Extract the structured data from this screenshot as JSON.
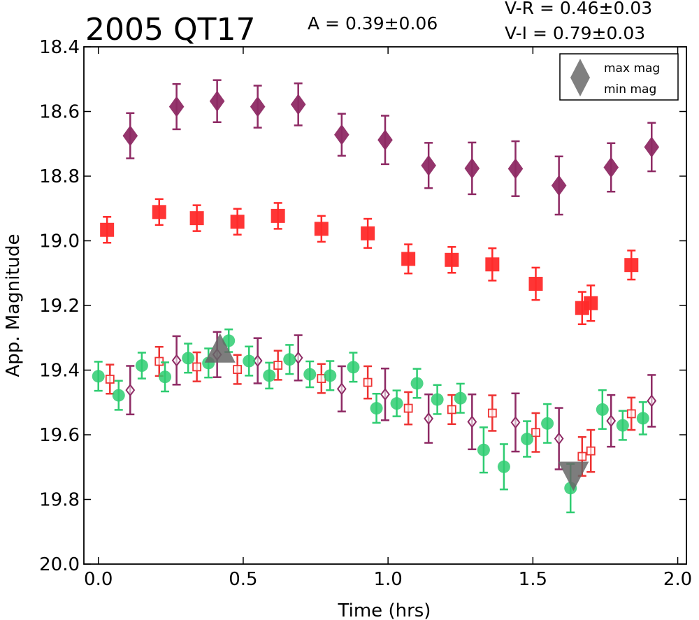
{
  "chart_data": {
    "type": "scatter",
    "title": "2005 QT17",
    "annotations": {
      "amplitude": "A  = 0.39±0.06",
      "v_minus_r": "V-R = 0.46±0.03",
      "v_minus_i": "V-I  = 0.79±0.03"
    },
    "xlabel": "Time (hrs)",
    "ylabel": "App. Magnitude",
    "xlim": [
      -0.05,
      2.03
    ],
    "ylim": [
      20.0,
      18.4
    ],
    "y_inverted": true,
    "grid": false,
    "xticks": [
      "0.0",
      "0.5",
      "1.0",
      "1.5",
      "2.0"
    ],
    "xtick_values": [
      0.0,
      0.5,
      1.0,
      1.5,
      2.0
    ],
    "yticks": [
      "18.4",
      "18.6",
      "18.8",
      "19.0",
      "19.2",
      "19.4",
      "19.6",
      "19.8",
      "20.0"
    ],
    "ytick_values": [
      18.4,
      18.6,
      18.8,
      19.0,
      19.2,
      19.4,
      19.6,
      19.8,
      20.0
    ],
    "legend": {
      "position": "top-right",
      "entries": [
        "max mag",
        "min mag"
      ]
    },
    "series": [
      {
        "marker": "diamond-filled",
        "color": "#8e2a64",
        "x": [
          0.11,
          0.27,
          0.41,
          0.55,
          0.69,
          0.84,
          0.99,
          1.14,
          1.29,
          1.44,
          1.59,
          1.77,
          1.91
        ],
        "y": [
          18.675,
          18.585,
          18.568,
          18.585,
          18.578,
          18.672,
          18.688,
          18.767,
          18.776,
          18.777,
          18.829,
          18.773,
          18.71
        ],
        "err": [
          0.07,
          0.07,
          0.065,
          0.065,
          0.065,
          0.065,
          0.075,
          0.07,
          0.08,
          0.085,
          0.09,
          0.075,
          0.075
        ]
      },
      {
        "marker": "square-filled",
        "color": "#ff2a2a",
        "x": [
          0.03,
          0.21,
          0.34,
          0.48,
          0.62,
          0.77,
          0.93,
          1.07,
          1.22,
          1.36,
          1.51,
          1.67,
          1.7,
          1.84
        ],
        "y": [
          18.966,
          18.911,
          18.93,
          18.941,
          18.923,
          18.963,
          18.977,
          19.056,
          19.059,
          19.073,
          19.133,
          19.208,
          19.193,
          19.075
        ],
        "err": [
          0.04,
          0.04,
          0.04,
          0.04,
          0.04,
          0.04,
          0.045,
          0.045,
          0.04,
          0.05,
          0.05,
          0.05,
          0.055,
          0.045
        ]
      },
      {
        "marker": "circle-filled",
        "color": "#2ecc71",
        "x": [
          0.0,
          0.07,
          0.15,
          0.23,
          0.31,
          0.38,
          0.45,
          0.52,
          0.59,
          0.66,
          0.73,
          0.8,
          0.88,
          0.96,
          1.03,
          1.1,
          1.17,
          1.25,
          1.33,
          1.4,
          1.48,
          1.55,
          1.63,
          1.74,
          1.81,
          1.88
        ],
        "y": [
          19.419,
          19.478,
          19.386,
          19.421,
          19.363,
          19.378,
          19.309,
          19.372,
          19.417,
          19.367,
          19.413,
          19.417,
          19.391,
          19.518,
          19.503,
          19.441,
          19.491,
          19.487,
          19.647,
          19.699,
          19.613,
          19.565,
          19.765,
          19.522,
          19.571,
          19.549
        ],
        "err": [
          0.045,
          0.045,
          0.04,
          0.045,
          0.045,
          0.045,
          0.035,
          0.045,
          0.04,
          0.045,
          0.04,
          0.045,
          0.045,
          0.045,
          0.04,
          0.045,
          0.045,
          0.045,
          0.07,
          0.07,
          0.055,
          0.06,
          0.075,
          0.06,
          0.045,
          0.05
        ]
      },
      {
        "marker": "square-open",
        "color": "#ee3333",
        "x": [
          0.04,
          0.21,
          0.34,
          0.48,
          0.62,
          0.77,
          0.93,
          1.07,
          1.22,
          1.36,
          1.51,
          1.67,
          1.7,
          1.84
        ],
        "y": [
          19.428,
          19.373,
          19.39,
          19.398,
          19.385,
          19.426,
          19.438,
          19.518,
          19.522,
          19.533,
          19.593,
          19.667,
          19.65,
          19.535
        ],
        "err": [
          0.045,
          0.045,
          0.045,
          0.045,
          0.045,
          0.045,
          0.05,
          0.05,
          0.045,
          0.055,
          0.06,
          0.06,
          0.065,
          0.05
        ]
      },
      {
        "marker": "diamond-open",
        "color": "#8e2a64",
        "x": [
          0.11,
          0.27,
          0.41,
          0.55,
          0.69,
          0.84,
          0.99,
          1.14,
          1.29,
          1.44,
          1.59,
          1.77,
          1.91
        ],
        "y": [
          19.462,
          19.37,
          19.352,
          19.371,
          19.362,
          19.458,
          19.475,
          19.55,
          19.56,
          19.562,
          19.612,
          19.557,
          19.495
        ],
        "err": [
          0.075,
          0.075,
          0.07,
          0.07,
          0.07,
          0.07,
          0.08,
          0.075,
          0.085,
          0.09,
          0.095,
          0.08,
          0.08
        ]
      }
    ],
    "extrema": [
      {
        "label": "max mag",
        "marker": "triangle-up",
        "color": "#666666",
        "x": 0.42,
        "y": 19.34
      },
      {
        "label": "min mag",
        "marker": "triangle-down",
        "color": "#666666",
        "x": 1.64,
        "y": 19.72
      }
    ]
  }
}
